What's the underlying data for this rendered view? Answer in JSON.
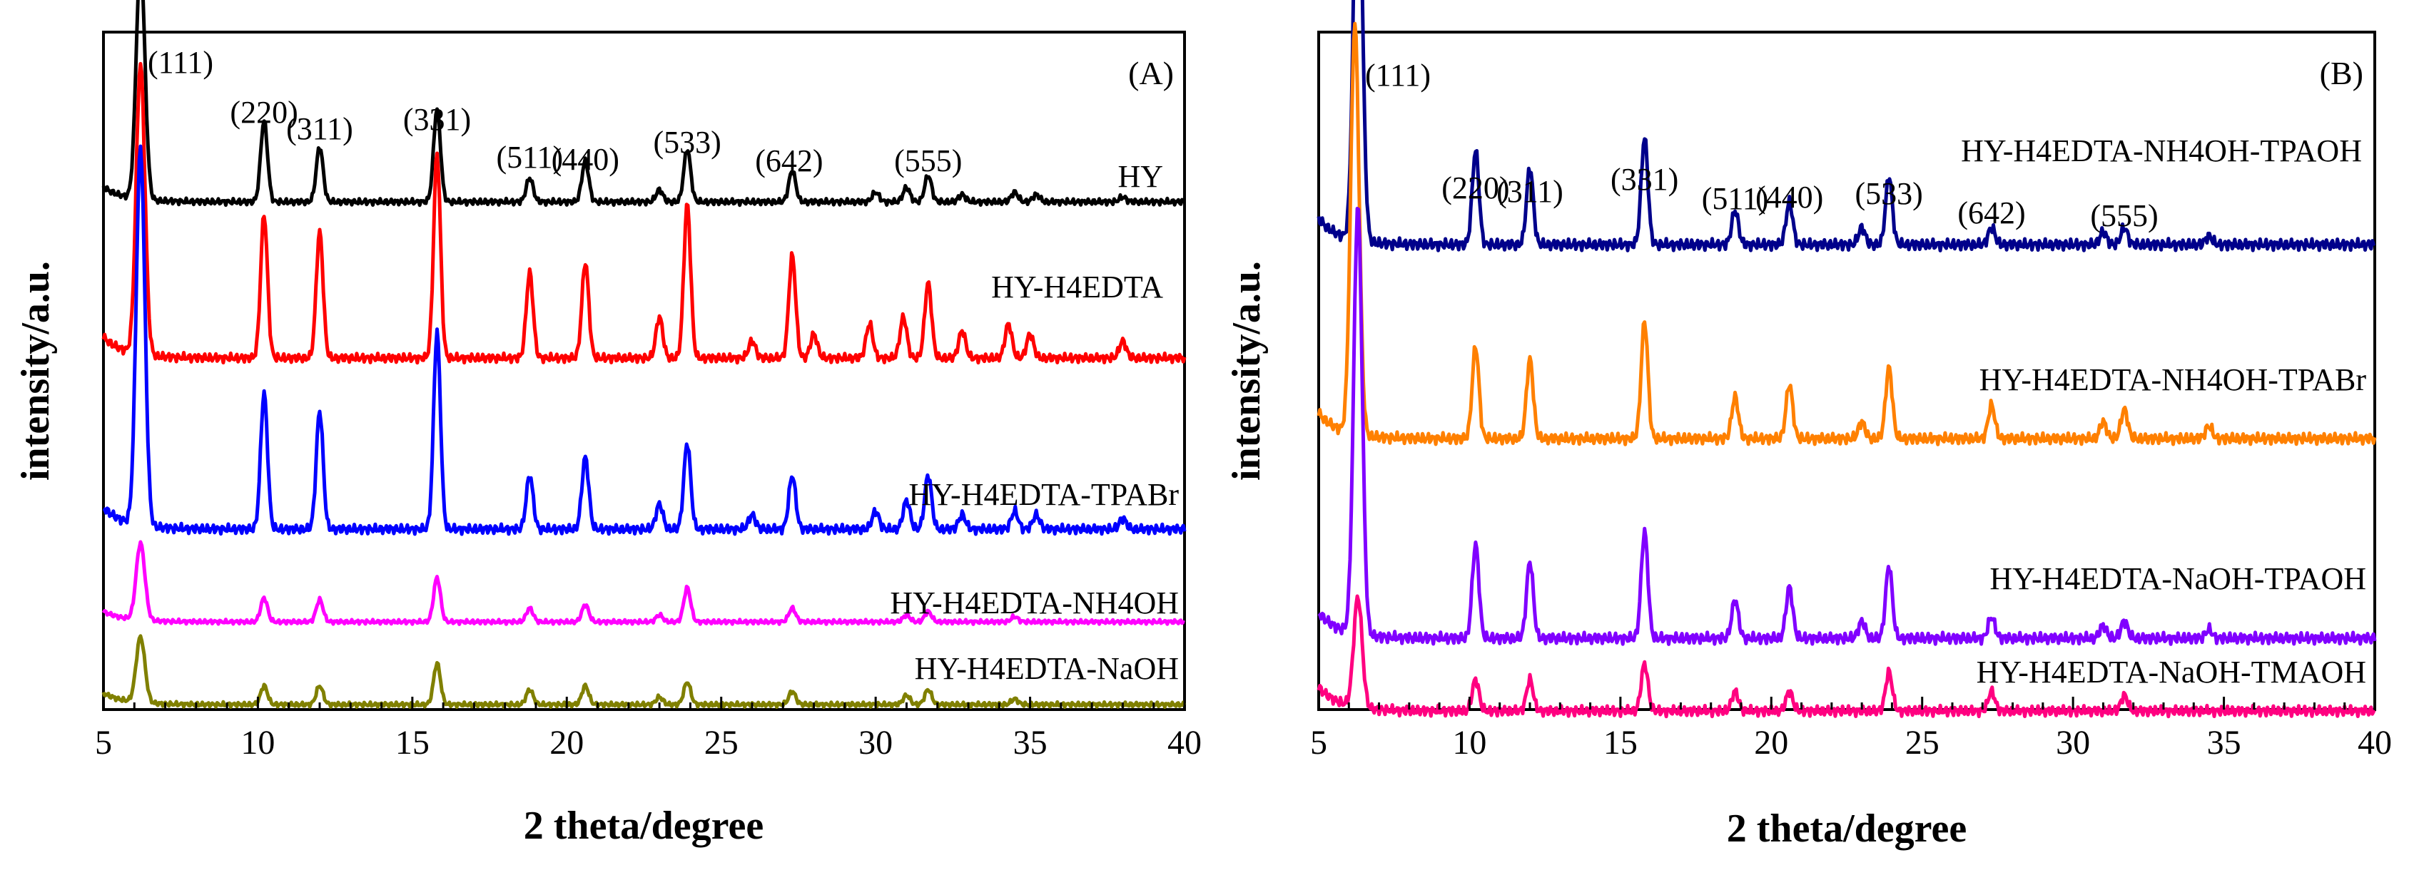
{
  "chart_data": [
    {
      "type": "line",
      "panel_label": "(A)",
      "xlabel": "2 theta/degree",
      "ylabel": "intensity/a.u.",
      "xlim": [
        5,
        40
      ],
      "x_ticks": [
        "5",
        "10",
        "15",
        "20",
        "25",
        "30",
        "35",
        "40"
      ],
      "y_ticks_shown": false,
      "peak_labels": [
        {
          "text": "(111)",
          "x": 6.2
        },
        {
          "text": "(220)",
          "x": 10.2
        },
        {
          "text": "(311)",
          "x": 12.0
        },
        {
          "text": "(331)",
          "x": 15.8
        },
        {
          "text": "(511)",
          "x": 18.8
        },
        {
          "text": "(440)",
          "x": 20.6
        },
        {
          "text": "(533)",
          "x": 23.9
        },
        {
          "text": "(642)",
          "x": 27.2
        },
        {
          "text": "(555)",
          "x": 31.7
        }
      ],
      "series": [
        {
          "name": "HY",
          "color": "#000000",
          "peaks": [
            [
              6.2,
              1.0
            ],
            [
              10.2,
              0.34
            ],
            [
              12.0,
              0.23
            ],
            [
              15.8,
              0.39
            ],
            [
              18.8,
              0.1
            ],
            [
              20.6,
              0.17
            ],
            [
              23.0,
              0.05
            ],
            [
              23.9,
              0.22
            ],
            [
              27.3,
              0.13
            ],
            [
              30.0,
              0.04
            ],
            [
              31.0,
              0.06
            ],
            [
              31.7,
              0.11
            ],
            [
              32.8,
              0.03
            ],
            [
              34.5,
              0.04
            ],
            [
              35.2,
              0.03
            ],
            [
              38.0,
              0.02
            ]
          ]
        },
        {
          "name": "HY-H4EDTA",
          "color": "#ff0000",
          "peaks": [
            [
              6.2,
              0.85
            ],
            [
              10.2,
              0.42
            ],
            [
              12.0,
              0.37
            ],
            [
              15.8,
              0.6
            ],
            [
              18.8,
              0.25
            ],
            [
              20.6,
              0.28
            ],
            [
              23.0,
              0.12
            ],
            [
              23.9,
              0.45
            ],
            [
              26.0,
              0.05
            ],
            [
              27.3,
              0.3
            ],
            [
              28.0,
              0.07
            ],
            [
              29.8,
              0.1
            ],
            [
              30.9,
              0.12
            ],
            [
              31.7,
              0.22
            ],
            [
              32.8,
              0.08
            ],
            [
              34.3,
              0.1
            ],
            [
              35.0,
              0.07
            ],
            [
              38.0,
              0.05
            ]
          ]
        },
        {
          "name": "HY-H4EDTA-TPABr",
          "color": "#0000ff",
          "peaks": [
            [
              6.2,
              1.05
            ],
            [
              10.2,
              0.38
            ],
            [
              12.0,
              0.33
            ],
            [
              15.8,
              0.55
            ],
            [
              18.8,
              0.15
            ],
            [
              20.6,
              0.2
            ],
            [
              23.0,
              0.07
            ],
            [
              23.9,
              0.24
            ],
            [
              26.0,
              0.04
            ],
            [
              27.3,
              0.15
            ],
            [
              30.0,
              0.05
            ],
            [
              31.0,
              0.08
            ],
            [
              31.7,
              0.15
            ],
            [
              32.8,
              0.04
            ],
            [
              34.5,
              0.05
            ],
            [
              35.2,
              0.04
            ],
            [
              38.0,
              0.03
            ]
          ]
        },
        {
          "name": "HY-H4EDTA-NH4OH",
          "color": "#ff00ff",
          "peaks": [
            [
              6.2,
              0.45
            ],
            [
              10.2,
              0.14
            ],
            [
              12.0,
              0.13
            ],
            [
              15.8,
              0.26
            ],
            [
              18.8,
              0.08
            ],
            [
              20.6,
              0.1
            ],
            [
              23.0,
              0.04
            ],
            [
              23.9,
              0.2
            ],
            [
              27.3,
              0.08
            ],
            [
              31.0,
              0.04
            ],
            [
              31.7,
              0.06
            ],
            [
              34.5,
              0.03
            ]
          ]
        },
        {
          "name": "HY-H4EDTA-NaOH",
          "color": "#808000",
          "peaks": [
            [
              6.2,
              0.35
            ],
            [
              10.2,
              0.1
            ],
            [
              12.0,
              0.1
            ],
            [
              15.8,
              0.22
            ],
            [
              18.8,
              0.08
            ],
            [
              20.6,
              0.1
            ],
            [
              23.0,
              0.04
            ],
            [
              23.9,
              0.12
            ],
            [
              27.3,
              0.07
            ],
            [
              31.0,
              0.05
            ],
            [
              31.7,
              0.08
            ],
            [
              34.5,
              0.03
            ]
          ]
        }
      ]
    },
    {
      "type": "line",
      "panel_label": "(B)",
      "xlabel": "2 theta/degree",
      "ylabel": "intensity/a.u.",
      "xlim": [
        5,
        40
      ],
      "x_ticks": [
        "5",
        "10",
        "15",
        "20",
        "25",
        "30",
        "35",
        "40"
      ],
      "y_ticks_shown": false,
      "peak_labels": [
        {
          "text": "(111)",
          "x": 6.3
        },
        {
          "text": "(220)",
          "x": 10.2
        },
        {
          "text": "(311)",
          "x": 12.0
        },
        {
          "text": "(331)",
          "x": 15.8
        },
        {
          "text": "(511)",
          "x": 18.8
        },
        {
          "text": "(440)",
          "x": 20.6
        },
        {
          "text": "(533)",
          "x": 23.9
        },
        {
          "text": "(642)",
          "x": 27.3
        },
        {
          "text": "(555)",
          "x": 31.7
        }
      ],
      "series": [
        {
          "name": "HY-H4EDTA-NH4OH-TPAOH",
          "color": "#00008b",
          "peaks": [
            [
              6.3,
              1.0
            ],
            [
              10.2,
              0.22
            ],
            [
              12.0,
              0.18
            ],
            [
              15.8,
              0.25
            ],
            [
              18.8,
              0.08
            ],
            [
              20.6,
              0.1
            ],
            [
              23.0,
              0.04
            ],
            [
              23.9,
              0.16
            ],
            [
              27.3,
              0.04
            ],
            [
              31.0,
              0.03
            ],
            [
              31.7,
              0.04
            ],
            [
              34.5,
              0.02
            ]
          ]
        },
        {
          "name": "HY-H4EDTA-NH4OH-TPABr",
          "color": "#ff8000",
          "peaks": [
            [
              6.2,
              0.98
            ],
            [
              10.2,
              0.22
            ],
            [
              12.0,
              0.19
            ],
            [
              15.8,
              0.28
            ],
            [
              18.8,
              0.1
            ],
            [
              20.6,
              0.13
            ],
            [
              23.0,
              0.04
            ],
            [
              23.9,
              0.17
            ],
            [
              27.3,
              0.08
            ],
            [
              31.0,
              0.04
            ],
            [
              31.7,
              0.07
            ],
            [
              34.5,
              0.03
            ]
          ]
        },
        {
          "name": "HY-H4EDTA-NaOH-TPAOH",
          "color": "#8000ff",
          "peaks": [
            [
              6.3,
              1.0
            ],
            [
              10.2,
              0.22
            ],
            [
              12.0,
              0.18
            ],
            [
              15.8,
              0.25
            ],
            [
              18.8,
              0.09
            ],
            [
              20.6,
              0.12
            ],
            [
              23.0,
              0.04
            ],
            [
              23.9,
              0.17
            ],
            [
              27.3,
              0.05
            ],
            [
              31.0,
              0.03
            ],
            [
              31.7,
              0.04
            ],
            [
              34.5,
              0.02
            ]
          ]
        },
        {
          "name": "HY-H4EDTA-NaOH-TMAOH",
          "color": "#ff0080",
          "peaks": [
            [
              6.3,
              0.28
            ],
            [
              10.2,
              0.08
            ],
            [
              12.0,
              0.08
            ],
            [
              15.8,
              0.12
            ],
            [
              18.8,
              0.05
            ],
            [
              20.6,
              0.05
            ],
            [
              23.9,
              0.1
            ],
            [
              27.3,
              0.05
            ],
            [
              31.7,
              0.04
            ]
          ]
        }
      ]
    }
  ]
}
